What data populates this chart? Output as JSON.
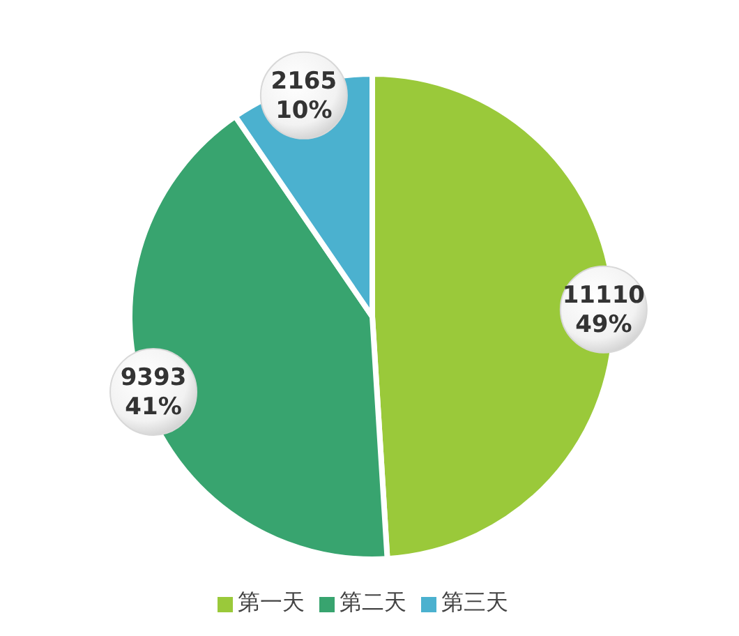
{
  "chart_data": {
    "type": "pie",
    "categories": [
      "第一天",
      "第二天",
      "第三天"
    ],
    "values": [
      11110,
      9393,
      2165
    ],
    "colors": [
      "#9ac93a",
      "#38a46f",
      "#4bb1cf"
    ],
    "value_labels": [
      "11110\n49%",
      "9393\n41%",
      "2165\n10%"
    ],
    "legend": "bottom"
  }
}
